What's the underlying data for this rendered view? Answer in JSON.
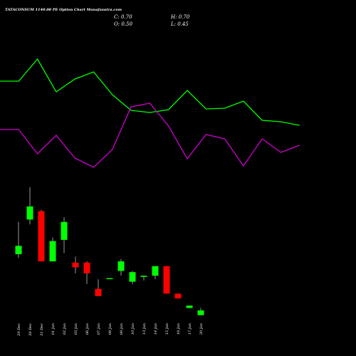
{
  "header": {
    "title": "TATACONSUM 1140.00 PE Option Chart Munafasutra.com",
    "c_label": "C:",
    "c_value": "0.70",
    "h_label": "H:",
    "h_value": "0.70",
    "o_label": "O:",
    "o_value": "0.50",
    "l_label": "L:",
    "l_value": "0.45"
  },
  "colors": {
    "background": "#000000",
    "up_candle": "#00ff00",
    "down_candle": "#ff0000",
    "line_green": "#00ff00",
    "line_magenta": "#cc00cc",
    "text": "#ffffff"
  },
  "chart_data": [
    {
      "type": "line",
      "series": [
        {
          "values": [
            114,
            114,
            83,
            129,
            111,
            101,
            133,
            155,
            158,
            154,
            127,
            153,
            152,
            142,
            169,
            171,
            176
          ]
        },
        {
          "values": [
            182,
            182,
            216,
            190,
            222,
            235,
            210,
            150,
            145,
            177,
            223,
            189,
            195,
            233,
            195,
            214,
            204
          ]
        }
      ],
      "y_axis": "inverted, unlabeled"
    },
    {
      "type": "candlestick",
      "categories": [
        "29 Dec",
        "30 Dec",
        "31 Dec",
        "01 Jan",
        "02 Jan",
        "03 Jan",
        "06 Jan",
        "07 Jan",
        "08 Jan",
        "09 Jan",
        "10 Jan",
        "13 Jan",
        "14 Jan",
        "15 Jan",
        "16 Jan",
        "17 Jan",
        "20 Jan"
      ],
      "candles": [
        {
          "open": 1.9,
          "close": 2.6,
          "high": 4.6,
          "low": 1.6
        },
        {
          "open": 4.8,
          "close": 5.9,
          "high": 7.5,
          "low": 4.4
        },
        {
          "open": 5.5,
          "close": 1.3,
          "high": 5.6,
          "low": 1.3
        },
        {
          "open": 1.3,
          "close": 3.0,
          "high": 3.3,
          "low": 1.3
        },
        {
          "open": 3.1,
          "close": 4.6,
          "high": 5.0,
          "low": 2.0
        },
        {
          "open": 1.2,
          "close": 0.8,
          "high": 1.7,
          "low": 0.3
        },
        {
          "open": 1.2,
          "close": 0.3,
          "high": 1.3,
          "low": -0.6
        },
        {
          "open": -1.0,
          "close": -1.6,
          "high": -0.2,
          "low": -1.6
        },
        {
          "open": -0.1,
          "close": -0.1,
          "high": -0.1,
          "low": -0.1
        },
        {
          "open": 0.5,
          "close": 1.3,
          "high": 1.5,
          "low": 0.1
        },
        {
          "open": -0.4,
          "close": 0.4,
          "high": 0.5,
          "low": -0.6
        },
        {
          "open": 0.0,
          "close": 0.1,
          "high": 0.1,
          "low": -0.3
        },
        {
          "open": 0.1,
          "close": 0.9,
          "high": 0.9,
          "low": -0.2
        },
        {
          "open": 0.9,
          "close": -1.4,
          "high": 0.9,
          "low": -1.4
        },
        {
          "open": -1.4,
          "close": -1.8,
          "high": -1.4,
          "low": -1.8
        },
        {
          "open": -2.6,
          "close": -2.4,
          "high": -2.4,
          "low": -2.6
        },
        {
          "open": -3.2,
          "close": -2.8,
          "high": -2.6,
          "low": -3.2
        }
      ],
      "y_axis": "unlabeled"
    }
  ]
}
